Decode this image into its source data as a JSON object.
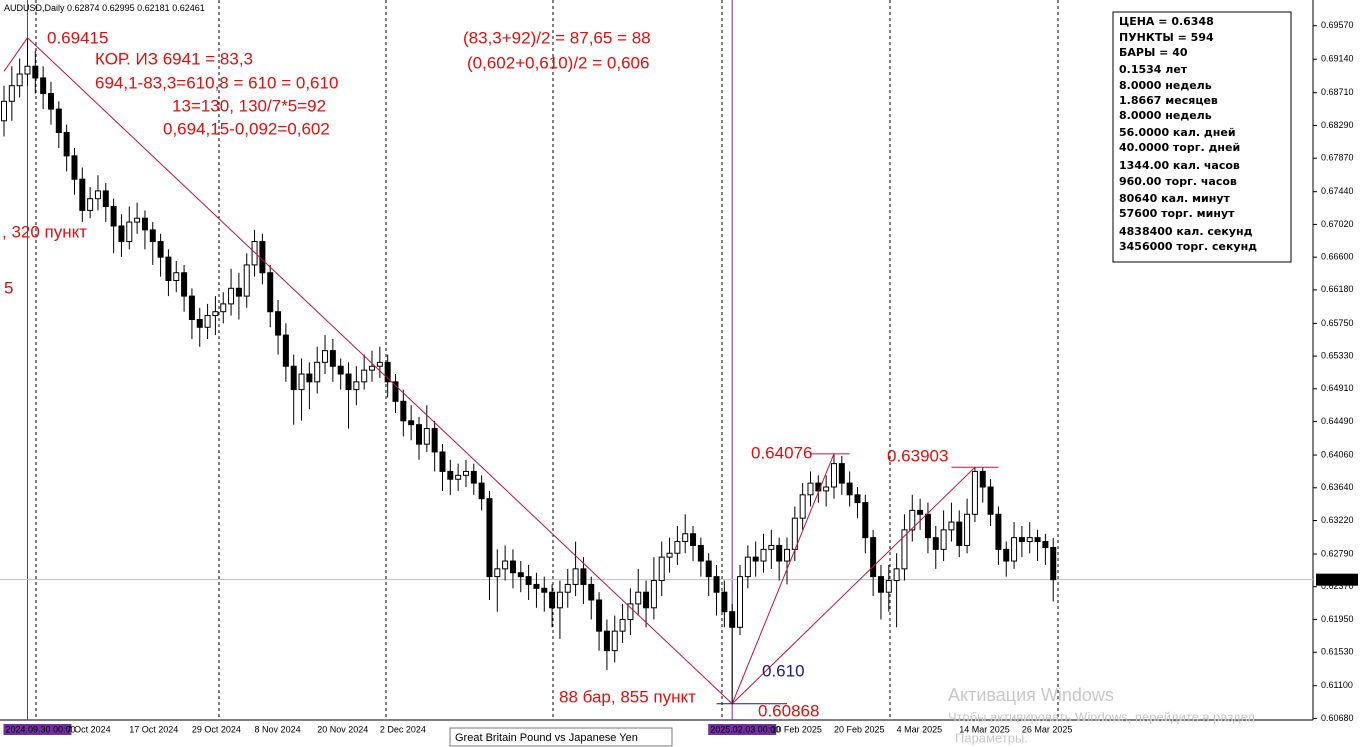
{
  "chart_data": {
    "type": "candlestick",
    "title": "AUDUSD,Daily",
    "categories": [
      null,
      null,
      null,
      "2024.09.30 00:00",
      null,
      null,
      null,
      null,
      "7 Oct 2024",
      null,
      null,
      null,
      null,
      null,
      null,
      null,
      "17 Oct 2024",
      null,
      null,
      null,
      null,
      null,
      null,
      null,
      "29 Oct 2024",
      null,
      null,
      null,
      null,
      null,
      null,
      null,
      "8 Nov 2024",
      null,
      null,
      null,
      null,
      null,
      null,
      null,
      "20 Nov 2024",
      null,
      null,
      null,
      null,
      null,
      null,
      null,
      "2 Dec 2024",
      null,
      null,
      null,
      null,
      null,
      null,
      null,
      null,
      null,
      null,
      null,
      null,
      null,
      null,
      null,
      null,
      null,
      null,
      null,
      null,
      null,
      null,
      null,
      null,
      null,
      null,
      null,
      null,
      null,
      null,
      null,
      null,
      null,
      null,
      null,
      null,
      null,
      null,
      null,
      null,
      null,
      null,
      null,
      null,
      "2025.02.03 00:00",
      null,
      null,
      null,
      null,
      "10 Feb 2025",
      null,
      null,
      null,
      null,
      null,
      null,
      null,
      "20 Feb 2025",
      null,
      null,
      null,
      null,
      null,
      null,
      null,
      "4 Mar 2025",
      null,
      null,
      null,
      null,
      null,
      null,
      null,
      "14 Mar 2025",
      null,
      null,
      null,
      null,
      null,
      null,
      null,
      "26 Mar 2025",
      null,
      null,
      null,
      null
    ],
    "open": [
      0.6835,
      0.686,
      0.688,
      0.6895,
      0.6905,
      0.689,
      0.687,
      0.685,
      0.682,
      0.679,
      0.676,
      0.672,
      0.6735,
      0.6745,
      0.6725,
      0.67,
      0.668,
      0.6705,
      0.671,
      0.6695,
      0.668,
      0.666,
      0.663,
      0.664,
      0.661,
      0.658,
      0.657,
      0.6585,
      0.659,
      0.66,
      0.662,
      0.661,
      0.665,
      0.668,
      0.664,
      0.659,
      0.656,
      0.652,
      0.649,
      0.651,
      0.65,
      0.6525,
      0.654,
      0.652,
      0.651,
      0.649,
      0.65,
      0.6515,
      0.652,
      0.6525,
      0.65,
      0.6475,
      0.645,
      0.6445,
      0.642,
      0.644,
      0.641,
      0.6385,
      0.6375,
      0.638,
      0.6385,
      0.637,
      0.635,
      0.625,
      0.626,
      0.627,
      0.6255,
      0.625,
      0.624,
      0.6235,
      0.623,
      0.621,
      0.623,
      0.624,
      0.626,
      0.624,
      0.622,
      0.618,
      0.6155,
      0.618,
      0.6195,
      0.6215,
      0.623,
      0.621,
      0.6245,
      0.6275,
      0.628,
      0.6295,
      0.6305,
      0.629,
      0.627,
      0.625,
      0.623,
      0.6205,
      0.6185,
      0.625,
      0.6275,
      0.627,
      0.6285,
      0.629,
      0.627,
      0.6285,
      0.6325,
      0.6355,
      0.637,
      0.636,
      0.6365,
      0.6395,
      0.637,
      0.6355,
      0.6345,
      0.63,
      0.625,
      0.623,
      0.6245,
      0.626,
      0.631,
      0.6335,
      0.633,
      0.63,
      0.6285,
      0.631,
      0.632,
      0.629,
      0.633,
      0.6385,
      0.6365,
      0.633,
      0.6285,
      0.627,
      0.63,
      0.6295,
      0.63,
      0.6295,
      0.62874
    ],
    "high": [
      0.688,
      0.6905,
      0.6915,
      0.69415,
      0.6925,
      0.6905,
      0.6885,
      0.686,
      0.683,
      0.68,
      0.6775,
      0.675,
      0.6765,
      0.6755,
      0.6735,
      0.6715,
      0.6725,
      0.673,
      0.672,
      0.6705,
      0.669,
      0.667,
      0.6655,
      0.665,
      0.662,
      0.6595,
      0.66,
      0.661,
      0.6615,
      0.6645,
      0.664,
      0.6665,
      0.6695,
      0.669,
      0.665,
      0.6605,
      0.6575,
      0.6535,
      0.653,
      0.6525,
      0.6545,
      0.656,
      0.6555,
      0.653,
      0.6525,
      0.652,
      0.6535,
      0.654,
      0.6545,
      0.6535,
      0.651,
      0.649,
      0.647,
      0.6455,
      0.647,
      0.645,
      0.642,
      0.64,
      0.6395,
      0.64,
      0.6395,
      0.638,
      0.636,
      0.6285,
      0.629,
      0.6285,
      0.627,
      0.6265,
      0.6255,
      0.625,
      0.624,
      0.6245,
      0.626,
      0.6295,
      0.6275,
      0.625,
      0.623,
      0.6195,
      0.62,
      0.6215,
      0.6235,
      0.626,
      0.6245,
      0.6275,
      0.6295,
      0.63,
      0.6315,
      0.633,
      0.6315,
      0.63,
      0.628,
      0.6265,
      0.6245,
      0.6215,
      0.6265,
      0.629,
      0.6295,
      0.6305,
      0.631,
      0.63,
      0.63,
      0.634,
      0.637,
      0.6385,
      0.638,
      0.638,
      0.64076,
      0.6405,
      0.6385,
      0.6365,
      0.6355,
      0.631,
      0.6265,
      0.6265,
      0.628,
      0.633,
      0.6355,
      0.635,
      0.6345,
      0.6315,
      0.6335,
      0.6345,
      0.6335,
      0.635,
      0.63903,
      0.639,
      0.6375,
      0.634,
      0.6295,
      0.632,
      0.6315,
      0.632,
      0.631,
      0.6305,
      0.62995
    ],
    "low": [
      0.6815,
      0.6835,
      0.6865,
      0.688,
      0.687,
      0.685,
      0.683,
      0.68,
      0.677,
      0.674,
      0.6705,
      0.671,
      0.672,
      0.6705,
      0.6665,
      0.666,
      0.667,
      0.669,
      0.667,
      0.665,
      0.6635,
      0.661,
      0.6615,
      0.659,
      0.6555,
      0.6545,
      0.6555,
      0.656,
      0.6575,
      0.6585,
      0.658,
      0.6595,
      0.6635,
      0.6625,
      0.657,
      0.6535,
      0.65,
      0.6445,
      0.645,
      0.6465,
      0.6485,
      0.651,
      0.65,
      0.649,
      0.644,
      0.647,
      0.649,
      0.65,
      0.6505,
      0.648,
      0.646,
      0.643,
      0.6425,
      0.64,
      0.641,
      0.6385,
      0.636,
      0.6355,
      0.636,
      0.6365,
      0.6355,
      0.6335,
      0.622,
      0.6205,
      0.6245,
      0.6235,
      0.623,
      0.622,
      0.621,
      0.6205,
      0.6185,
      0.617,
      0.621,
      0.6225,
      0.6215,
      0.6195,
      0.6155,
      0.613,
      0.614,
      0.6165,
      0.6175,
      0.62,
      0.6185,
      0.6195,
      0.6225,
      0.6255,
      0.6265,
      0.628,
      0.627,
      0.625,
      0.6225,
      0.62,
      0.6185,
      0.60868,
      0.6175,
      0.6235,
      0.625,
      0.6255,
      0.626,
      0.6245,
      0.624,
      0.627,
      0.631,
      0.634,
      0.6345,
      0.634,
      0.635,
      0.6355,
      0.634,
      0.6325,
      0.628,
      0.6225,
      0.6195,
      0.6205,
      0.6185,
      0.6245,
      0.6295,
      0.631,
      0.628,
      0.626,
      0.627,
      0.6295,
      0.6275,
      0.628,
      0.632,
      0.6345,
      0.6315,
      0.6265,
      0.625,
      0.626,
      0.6275,
      0.628,
      0.627,
      0.6265,
      0.62181
    ],
    "close": [
      0.686,
      0.688,
      0.6895,
      0.6905,
      0.689,
      0.687,
      0.685,
      0.682,
      0.679,
      0.676,
      0.672,
      0.6735,
      0.6745,
      0.6725,
      0.67,
      0.668,
      0.6705,
      0.671,
      0.6695,
      0.668,
      0.666,
      0.663,
      0.664,
      0.661,
      0.658,
      0.657,
      0.6585,
      0.659,
      0.66,
      0.662,
      0.661,
      0.665,
      0.668,
      0.664,
      0.659,
      0.656,
      0.652,
      0.649,
      0.651,
      0.65,
      0.6525,
      0.654,
      0.652,
      0.651,
      0.649,
      0.65,
      0.6515,
      0.652,
      0.6525,
      0.65,
      0.6475,
      0.645,
      0.6445,
      0.642,
      0.644,
      0.641,
      0.6385,
      0.6375,
      0.638,
      0.6385,
      0.637,
      0.635,
      0.625,
      0.626,
      0.627,
      0.6255,
      0.625,
      0.624,
      0.6235,
      0.623,
      0.621,
      0.623,
      0.624,
      0.626,
      0.624,
      0.622,
      0.618,
      0.6155,
      0.618,
      0.6195,
      0.6215,
      0.623,
      0.621,
      0.6245,
      0.6275,
      0.628,
      0.6295,
      0.6305,
      0.629,
      0.627,
      0.625,
      0.623,
      0.6205,
      0.6185,
      0.625,
      0.6275,
      0.627,
      0.6285,
      0.629,
      0.627,
      0.6285,
      0.6325,
      0.6355,
      0.637,
      0.636,
      0.6365,
      0.6395,
      0.637,
      0.6355,
      0.6345,
      0.63,
      0.625,
      0.623,
      0.6245,
      0.626,
      0.631,
      0.6335,
      0.633,
      0.63,
      0.6285,
      0.631,
      0.632,
      0.629,
      0.633,
      0.6385,
      0.6365,
      0.633,
      0.6285,
      0.627,
      0.63,
      0.6295,
      0.63,
      0.6295,
      0.62874,
      0.62461
    ],
    "up_color": "#ffffff",
    "down_color": "#000000",
    "line_color": "#000000",
    "ylim": [
      0.6066,
      0.699
    ],
    "yticks": [
      {
        "value": 0.6957,
        "label": "0.69570"
      },
      {
        "value": 0.6914,
        "label": "0.69140"
      },
      {
        "value": 0.6871,
        "label": "0.68710"
      },
      {
        "value": 0.6829,
        "label": "0.68290"
      },
      {
        "value": 0.6787,
        "label": "0.67870"
      },
      {
        "value": 0.6744,
        "label": "0.67440"
      },
      {
        "value": 0.6702,
        "label": "0.67020"
      },
      {
        "value": 0.666,
        "label": "0.66600"
      },
      {
        "value": 0.6618,
        "label": "0.66180"
      },
      {
        "value": 0.6575,
        "label": "0.65750"
      },
      {
        "value": 0.6533,
        "label": "0.65330"
      },
      {
        "value": 0.6491,
        "label": "0.64910"
      },
      {
        "value": 0.6449,
        "label": "0.64490"
      },
      {
        "value": 0.6406,
        "label": "0.64060"
      },
      {
        "value": 0.6364,
        "label": "0.63640"
      },
      {
        "value": 0.6322,
        "label": "0.63220"
      },
      {
        "value": 0.6279,
        "label": "0.62790"
      },
      {
        "value": 0.6237,
        "label": "0.62370"
      },
      {
        "value": 0.6195,
        "label": "0.61950"
      },
      {
        "value": 0.6153,
        "label": "0.61530"
      },
      {
        "value": 0.611,
        "label": "0.61100"
      },
      {
        "value": 0.6068,
        "label": "0.60680"
      }
    ],
    "grid": false,
    "annotations": [
      "КОР. ИЗ 6941 = 83,3",
      "694,1-83,3=610,8 = 610 = 0,610",
      "13=130, 130/7*5=92",
      "0,694,15-0,092=0,602",
      "(83,3+92)/2 = 87,65 = 88",
      "(0,602+0,610)/2 = 0,606",
      ", 320 пункт",
      "5",
      "88 бар, 855 пункт",
      "0.610"
    ]
  },
  "info_box": {
    "lines": [
      "ЦЕНА = 0.6348",
      "ПУНКТЫ = 594",
      "БАРЫ = 40",
      "0.1534 лет",
      "8.0000 недель",
      "1.8667 месяцев",
      "8.0000 недель",
      "56.0000 кал. дней",
      "40.0000 торг. дней",
      "1344.00 кал. часов",
      "960.00 торг. часов",
      "80640 кал. минут",
      "57600 торг. минут",
      "4838400 кал. секунд",
      "3456000 торг. секунд"
    ]
  },
  "tooltip": "Great Britain Pound vs Japanese Yen",
  "watermark": {
    "title": "Активация Windows",
    "line": "Чтобы активировать Windows, перейдите в раздел",
    "link": "Параметры."
  }
}
